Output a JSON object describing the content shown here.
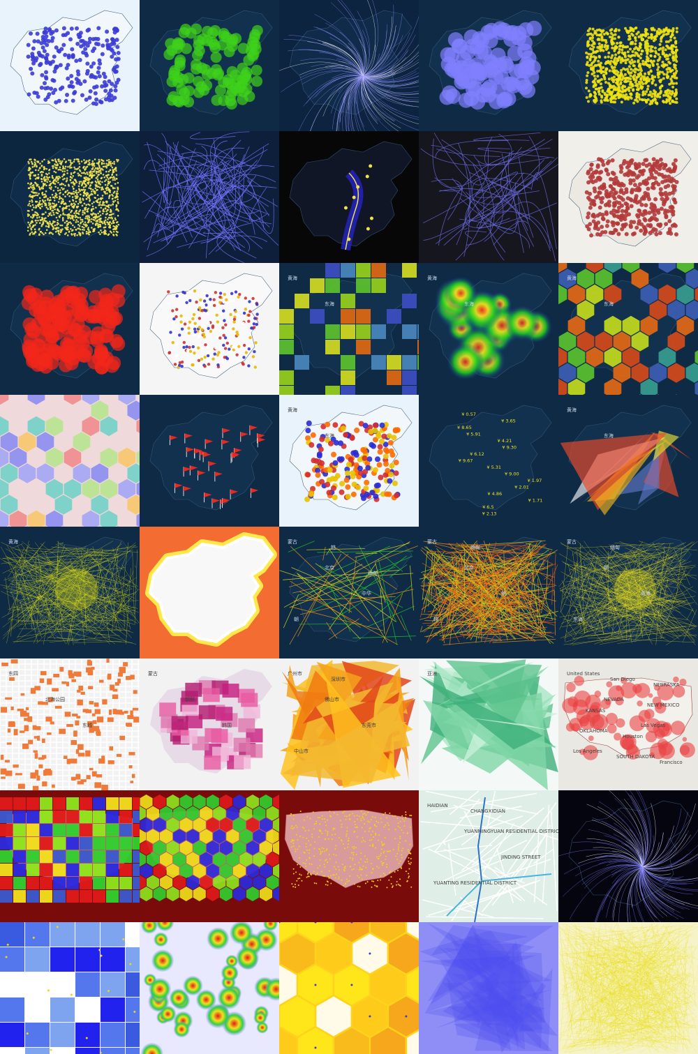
{
  "grid": {
    "rows": 8,
    "cols": 5
  },
  "tiles": [
    {
      "kind": "dots",
      "bg": "#e9f3fb",
      "land": "#f4f8fb",
      "color": "#3b3bd6",
      "n": 230,
      "r": 3,
      "labels": []
    },
    {
      "kind": "dots",
      "bg": "#0e2a45",
      "land": "#13324f",
      "color": "#3fd21a",
      "n": 110,
      "r": 8,
      "labels": []
    },
    {
      "kind": "flow",
      "bg": "#0c2440",
      "land": "#102c4a",
      "color": "#8f8fff",
      "core": "#ffffff",
      "n": 160,
      "labels": []
    },
    {
      "kind": "dots",
      "bg": "#0e2a45",
      "land": "#13324f",
      "color": "#8080ff",
      "n": 90,
      "r": 11,
      "labels": []
    },
    {
      "kind": "dots",
      "bg": "#0e2a45",
      "land": "#13324f",
      "color": "#f0e20f",
      "n": 900,
      "r": 2,
      "labels": []
    },
    {
      "kind": "dots",
      "bg": "#0c2640",
      "land": "#102e4c",
      "color": "#f4e64a",
      "n": 1300,
      "r": 1.3,
      "labels": []
    },
    {
      "kind": "roads",
      "bg": "#0d1f3a",
      "color": "#7373ff",
      "n": 80,
      "labels": []
    },
    {
      "kind": "route",
      "bg": "#070707",
      "land": "#12182a",
      "color": "#2424c8",
      "line": "#f2e24a",
      "n": 8,
      "labels": []
    },
    {
      "kind": "roads",
      "bg": "#16161f",
      "color": "#6a6adf",
      "n": 50,
      "labels": []
    },
    {
      "kind": "dots",
      "bg": "#f1efe9",
      "land": "#ece9e2",
      "color": "#b23a3a",
      "n": 420,
      "r": 3,
      "labels": []
    },
    {
      "kind": "dots",
      "bg": "#0e2a45",
      "land": "#13324f",
      "color": "#f2271a",
      "n": 150,
      "r": 10,
      "labels": []
    },
    {
      "kind": "multidots",
      "bg": "#f5f5f5",
      "land": "#fafafa",
      "colors": [
        "#3333cc",
        "#e8b800",
        "#cc3333",
        "#ffffff"
      ],
      "n": 220,
      "r": 2.2,
      "labels": []
    },
    {
      "kind": "squares",
      "bg": "#0e2a45",
      "land": "#13324f",
      "colors": [
        "#3d4fc4",
        "#5ec52c",
        "#9ad41a",
        "#e46a12",
        "#d8df20",
        "#4a8ac0"
      ],
      "labels": [
        "黄海",
        "东海"
      ]
    },
    {
      "kind": "heat",
      "bg": "#0e2a45",
      "land": "#13324f",
      "labels": [
        "黄海",
        "东海"
      ]
    },
    {
      "kind": "hex",
      "bg": "#0e2a45",
      "land": "#13324f",
      "colors": [
        "#e86a14",
        "#5cc42e",
        "#c8de1c",
        "#3e5fb6",
        "#3aa090",
        "#d84a18"
      ],
      "labels": [
        "黄海",
        "东海"
      ]
    },
    {
      "kind": "hexlight",
      "bg": "#f0d9da",
      "land": "#e8dfe2",
      "colors": [
        "#8b8cf0",
        "#a3a5f6",
        "#b7e48e",
        "#f7c56a",
        "#ee8b8d",
        "#72d0c6"
      ],
      "labels": []
    },
    {
      "kind": "flags",
      "bg": "#0e2a45",
      "land": "#13324f",
      "color": "#e62a22",
      "n": 30,
      "labels": []
    },
    {
      "kind": "multidots",
      "bg": "#e9f3fb",
      "land": "#f4f8fb",
      "colors": [
        "#d42f2f",
        "#2b2bd0",
        "#e8c200",
        "#ff6a00"
      ],
      "n": 200,
      "r": 4,
      "labels": [
        "黄海",
        "东海"
      ]
    },
    {
      "kind": "prices",
      "bg": "#0e2a45",
      "land": "#13324f",
      "color": "#f2e21c",
      "labels": [
        "¥ 0.57",
        "¥ 3.65",
        "¥ 8.65",
        "¥ 5.91",
        "¥ 4.21",
        "¥ 9.30",
        "¥ 6.12",
        "¥ 9.67",
        "¥ 5.31",
        "¥ 9.00",
        "¥ 1.97",
        "¥ 2.01",
        "¥ 4.86",
        "¥ 1.71",
        "¥ 6.5",
        "¥ 2.13"
      ]
    },
    {
      "kind": "triangles",
      "bg": "#0e2a45",
      "land": "#13324f",
      "colors": [
        "#f04a2a",
        "#f0b41e",
        "#6074c4",
        "#e8e030",
        "#f5f5f5"
      ],
      "labels": [
        "黄海",
        "东海"
      ]
    },
    {
      "kind": "lines",
      "bg": "#0e2a45",
      "land": "#13324f",
      "colors": [
        "#e8e612"
      ],
      "n": 260,
      "glow": true,
      "labels": [
        "黄海"
      ]
    },
    {
      "kind": "china",
      "bg": "#f36d33",
      "land": "#f8f8f8",
      "border": "#ffe94a",
      "labels": []
    },
    {
      "kind": "lines",
      "bg": "#0e2a45",
      "land": "#13324f",
      "colors": [
        "#23c72a",
        "#e8e020",
        "#f29a12"
      ],
      "n": 60,
      "glow": false,
      "labels": [
        "蒙古",
        "北京",
        "中华",
        "朝",
        "韩",
        "缅甸"
      ]
    },
    {
      "kind": "lines",
      "bg": "#0e2a45",
      "land": "#13324f",
      "colors": [
        "#f29a12",
        "#e25a16",
        "#c8d21c"
      ],
      "n": 320,
      "glow": false,
      "labels": [
        "蒙古",
        "北京",
        "朝",
        "韩",
        "缅甸"
      ]
    },
    {
      "kind": "lines",
      "bg": "#0e2a45",
      "land": "#13324f",
      "colors": [
        "#f4e81a"
      ],
      "n": 280,
      "glow": true,
      "labels": [
        "蒙古",
        "朝",
        "黄海",
        "东海",
        "缅甸"
      ]
    },
    {
      "kind": "parcels",
      "bg": "#f2f2f2",
      "color": "#f07a3a",
      "labels": [
        "东四",
        "北海公园",
        "东城"
      ]
    },
    {
      "kind": "choro",
      "bg": "#f2f2f2",
      "land": "#e6dbe7",
      "colors": [
        "#c51b7d",
        "#de77ae",
        "#f1b6da",
        "#b21a6e",
        "#e85aa2"
      ],
      "labels": [
        "蒙古",
        "朝鲜",
        "韩国"
      ]
    },
    {
      "kind": "choro2",
      "bg": "#f2f2f2",
      "colors": [
        "#f07a12",
        "#f5a21c",
        "#e2461a",
        "#ffc21e",
        "#f3b830"
      ],
      "labels": [
        "广州市",
        "佛山市",
        "东莞市",
        "中山市",
        "深圳市"
      ]
    },
    {
      "kind": "world",
      "bg": "#f4f8f6",
      "colors": [
        "#7fd6a6",
        "#5fc48e",
        "#a8e6c4",
        "#3eb07a",
        "#c9f0da"
      ],
      "labels": [
        "亚洲"
      ]
    },
    {
      "kind": "usdots",
      "bg": "#eae8e2",
      "land": "#f2f1ec",
      "color": "#e94343",
      "labels": [
        "United States",
        "NEVADA",
        "Las Vegas",
        "Los Angeles",
        "San Diego",
        "NEW MEXICO",
        "OKLAHOMA",
        "SOUTH DAKOTA",
        "NEBRASKA",
        "KANSAS",
        "Houston",
        "Francisco"
      ]
    },
    {
      "kind": "usgrid",
      "bg": "#7a0b0b",
      "colors": [
        "#2a2ae0",
        "#2fd22f",
        "#8ee81e",
        "#e01a1a",
        "#f2e21c",
        "#3a5ad0"
      ],
      "labels": []
    },
    {
      "kind": "ushex",
      "bg": "#7a0b0b",
      "colors": [
        "#2a2ae0",
        "#2fd22f",
        "#8ee81e",
        "#e01a1a",
        "#f2e21c"
      ],
      "labels": []
    },
    {
      "kind": "uspts",
      "bg": "#7a0b0b",
      "land": "#d89a9a",
      "color": "#f2d21c",
      "labels": []
    },
    {
      "kind": "metro",
      "bg": "#dfeee6",
      "color": "#2a72c8",
      "labels": [
        "HAIDIAN",
        "YUANMINGYUAN RESIDENTIAL DISTRICT",
        "JINDING STREET",
        "YUANTING RESIDENTIAL DISTRICT",
        "CHANGXIDIAN"
      ]
    },
    {
      "kind": "flow",
      "bg": "#050510",
      "land": "#050510",
      "color": "#7d7dff",
      "core": "#ffffff",
      "n": 140,
      "labels": []
    },
    {
      "kind": "gridsq",
      "bg": "#ffffff",
      "colors": [
        "#2222ee",
        "#7ea4f0",
        "#3a5ae0",
        "#ffffff",
        "#5577ee"
      ],
      "dot": "#f2d21c",
      "labels": []
    },
    {
      "kind": "heatlight",
      "bg": "#e8e8ff",
      "labels": []
    },
    {
      "kind": "hexyellow",
      "bg": "#ffd21c",
      "colors": [
        "#f5a21c",
        "#ffe81c",
        "#f7b81c",
        "#ffffff",
        "#ffca1c"
      ],
      "dot": "#3a3ad0",
      "labels": []
    },
    {
      "kind": "tris",
      "bg": "#8e8ef6",
      "color": "#4a4aee",
      "labels": []
    },
    {
      "kind": "scribble",
      "bg": "#f7f3c8",
      "color": "#e8dc0a",
      "labels": []
    }
  ]
}
